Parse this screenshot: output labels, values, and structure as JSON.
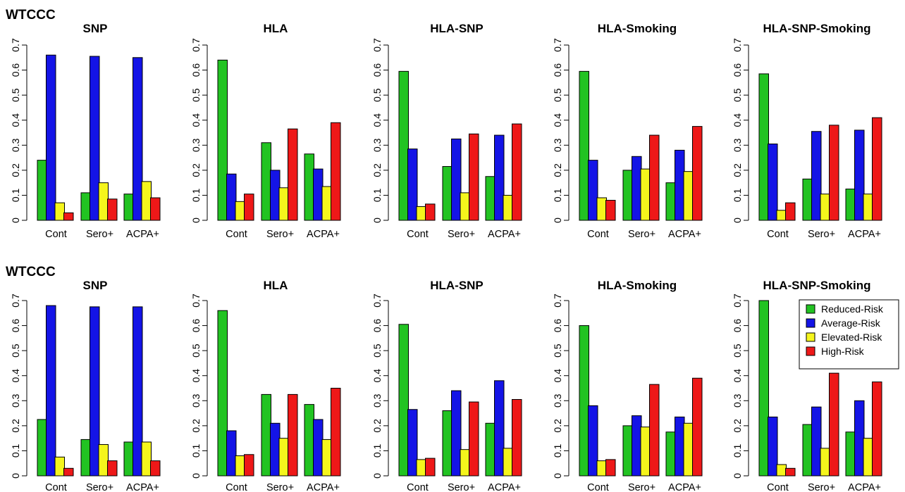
{
  "rows": [
    "WTCCC",
    "WTCCC"
  ],
  "legend": {
    "entries": [
      "Reduced-Risk",
      "Average-Risk",
      "Elevated-Risk",
      "High-Risk"
    ],
    "colors": [
      "#22c322",
      "#1414e6",
      "#f5f51c",
      "#ee1818"
    ],
    "placement": "top-right of last bottom-row panel"
  },
  "chart_data": [
    {
      "type": "bar",
      "row": 0,
      "title": "SNP",
      "categories": [
        "Cont",
        "Sero+",
        "ACPA+"
      ],
      "ylim": [
        0,
        0.7
      ],
      "yticks": [
        "0",
        "0.1",
        "0.2",
        "0.3",
        "0.4",
        "0.5",
        "0.6",
        "0.7"
      ],
      "series": [
        {
          "name": "Reduced-Risk",
          "values": [
            0.24,
            0.11,
            0.105
          ]
        },
        {
          "name": "Average-Risk",
          "values": [
            0.66,
            0.655,
            0.65
          ]
        },
        {
          "name": "Elevated-Risk",
          "values": [
            0.07,
            0.15,
            0.155
          ]
        },
        {
          "name": "High-Risk",
          "values": [
            0.03,
            0.085,
            0.09
          ]
        }
      ]
    },
    {
      "type": "bar",
      "row": 0,
      "title": "HLA",
      "categories": [
        "Cont",
        "Sero+",
        "ACPA+"
      ],
      "ylim": [
        0,
        0.7
      ],
      "yticks": [
        "0",
        "0.1",
        "0.2",
        "0.3",
        "0.4",
        "0.5",
        "0.6",
        "0.7"
      ],
      "series": [
        {
          "name": "Reduced-Risk",
          "values": [
            0.64,
            0.31,
            0.265
          ]
        },
        {
          "name": "Average-Risk",
          "values": [
            0.185,
            0.2,
            0.205
          ]
        },
        {
          "name": "Elevated-Risk",
          "values": [
            0.075,
            0.13,
            0.135
          ]
        },
        {
          "name": "High-Risk",
          "values": [
            0.105,
            0.365,
            0.39
          ]
        }
      ]
    },
    {
      "type": "bar",
      "row": 0,
      "title": "HLA-SNP",
      "categories": [
        "Cont",
        "Sero+",
        "ACPA+"
      ],
      "ylim": [
        0,
        0.7
      ],
      "yticks": [
        "0",
        "0.1",
        "0.2",
        "0.3",
        "0.4",
        "0.5",
        "0.6",
        "0.7"
      ],
      "series": [
        {
          "name": "Reduced-Risk",
          "values": [
            0.595,
            0.215,
            0.175
          ]
        },
        {
          "name": "Average-Risk",
          "values": [
            0.285,
            0.325,
            0.34
          ]
        },
        {
          "name": "Elevated-Risk",
          "values": [
            0.055,
            0.11,
            0.1
          ]
        },
        {
          "name": "High-Risk",
          "values": [
            0.065,
            0.345,
            0.385
          ]
        }
      ]
    },
    {
      "type": "bar",
      "row": 0,
      "title": "HLA-Smoking",
      "categories": [
        "Cont",
        "Sero+",
        "ACPA+"
      ],
      "ylim": [
        0,
        0.7
      ],
      "yticks": [
        "0",
        "0.1",
        "0.2",
        "0.3",
        "0.4",
        "0.5",
        "0.6",
        "0.7"
      ],
      "series": [
        {
          "name": "Reduced-Risk",
          "values": [
            0.595,
            0.2,
            0.15
          ]
        },
        {
          "name": "Average-Risk",
          "values": [
            0.24,
            0.255,
            0.28
          ]
        },
        {
          "name": "Elevated-Risk",
          "values": [
            0.09,
            0.205,
            0.195
          ]
        },
        {
          "name": "High-Risk",
          "values": [
            0.08,
            0.34,
            0.375
          ]
        }
      ]
    },
    {
      "type": "bar",
      "row": 0,
      "title": "HLA-SNP-Smoking",
      "categories": [
        "Cont",
        "Sero+",
        "ACPA+"
      ],
      "ylim": [
        0,
        0.7
      ],
      "yticks": [
        "0",
        "0.1",
        "0.2",
        "0.3",
        "0.4",
        "0.5",
        "0.6",
        "0.7"
      ],
      "series": [
        {
          "name": "Reduced-Risk",
          "values": [
            0.585,
            0.165,
            0.125
          ]
        },
        {
          "name": "Average-Risk",
          "values": [
            0.305,
            0.355,
            0.36
          ]
        },
        {
          "name": "Elevated-Risk",
          "values": [
            0.04,
            0.105,
            0.105
          ]
        },
        {
          "name": "High-Risk",
          "values": [
            0.07,
            0.38,
            0.41
          ]
        }
      ]
    },
    {
      "type": "bar",
      "row": 1,
      "title": "SNP",
      "categories": [
        "Cont",
        "Sero+",
        "ACPA+"
      ],
      "ylim": [
        0,
        0.7
      ],
      "yticks": [
        "0",
        "0.1",
        "0.2",
        "0.3",
        "0.4",
        "0.5",
        "0.6",
        "0.7"
      ],
      "series": [
        {
          "name": "Reduced-Risk",
          "values": [
            0.225,
            0.145,
            0.135
          ]
        },
        {
          "name": "Average-Risk",
          "values": [
            0.68,
            0.675,
            0.675
          ]
        },
        {
          "name": "Elevated-Risk",
          "values": [
            0.075,
            0.125,
            0.135
          ]
        },
        {
          "name": "High-Risk",
          "values": [
            0.03,
            0.06,
            0.06
          ]
        }
      ]
    },
    {
      "type": "bar",
      "row": 1,
      "title": "HLA",
      "categories": [
        "Cont",
        "Sero+",
        "ACPA+"
      ],
      "ylim": [
        0,
        0.7
      ],
      "yticks": [
        "0",
        "0.1",
        "0.2",
        "0.3",
        "0.4",
        "0.5",
        "0.6",
        "0.7"
      ],
      "series": [
        {
          "name": "Reduced-Risk",
          "values": [
            0.66,
            0.325,
            0.285
          ]
        },
        {
          "name": "Average-Risk",
          "values": [
            0.18,
            0.21,
            0.225
          ]
        },
        {
          "name": "Elevated-Risk",
          "values": [
            0.08,
            0.15,
            0.145
          ]
        },
        {
          "name": "High-Risk",
          "values": [
            0.085,
            0.325,
            0.35
          ]
        }
      ]
    },
    {
      "type": "bar",
      "row": 1,
      "title": "HLA-SNP",
      "categories": [
        "Cont",
        "Sero+",
        "ACPA+"
      ],
      "ylim": [
        0,
        0.7
      ],
      "yticks": [
        "0",
        "0.1",
        "0.2",
        "0.3",
        "0.4",
        "0.5",
        "0.6",
        "0.7"
      ],
      "series": [
        {
          "name": "Reduced-Risk",
          "values": [
            0.605,
            0.26,
            0.21
          ]
        },
        {
          "name": "Average-Risk",
          "values": [
            0.265,
            0.34,
            0.38
          ]
        },
        {
          "name": "Elevated-Risk",
          "values": [
            0.065,
            0.105,
            0.11
          ]
        },
        {
          "name": "High-Risk",
          "values": [
            0.07,
            0.295,
            0.305
          ]
        }
      ]
    },
    {
      "type": "bar",
      "row": 1,
      "title": "HLA-Smoking",
      "categories": [
        "Cont",
        "Sero+",
        "ACPA+"
      ],
      "ylim": [
        0,
        0.7
      ],
      "yticks": [
        "0",
        "0.1",
        "0.2",
        "0.3",
        "0.4",
        "0.5",
        "0.6",
        "0.7"
      ],
      "series": [
        {
          "name": "Reduced-Risk",
          "values": [
            0.6,
            0.2,
            0.175
          ]
        },
        {
          "name": "Average-Risk",
          "values": [
            0.28,
            0.24,
            0.235
          ]
        },
        {
          "name": "Elevated-Risk",
          "values": [
            0.06,
            0.195,
            0.21
          ]
        },
        {
          "name": "High-Risk",
          "values": [
            0.065,
            0.365,
            0.39
          ]
        }
      ]
    },
    {
      "type": "bar",
      "row": 1,
      "title": "HLA-SNP-Smoking",
      "categories": [
        "Cont",
        "Sero+",
        "ACPA+"
      ],
      "ylim": [
        0,
        0.7
      ],
      "yticks": [
        "0",
        "0.1",
        "0.2",
        "0.3",
        "0.4",
        "0.5",
        "0.6",
        "0.7"
      ],
      "series": [
        {
          "name": "Reduced-Risk",
          "values": [
            0.7,
            0.205,
            0.175
          ]
        },
        {
          "name": "Average-Risk",
          "values": [
            0.235,
            0.275,
            0.3
          ]
        },
        {
          "name": "Elevated-Risk",
          "values": [
            0.045,
            0.11,
            0.15
          ]
        },
        {
          "name": "High-Risk",
          "values": [
            0.03,
            0.41,
            0.375
          ]
        }
      ]
    }
  ]
}
